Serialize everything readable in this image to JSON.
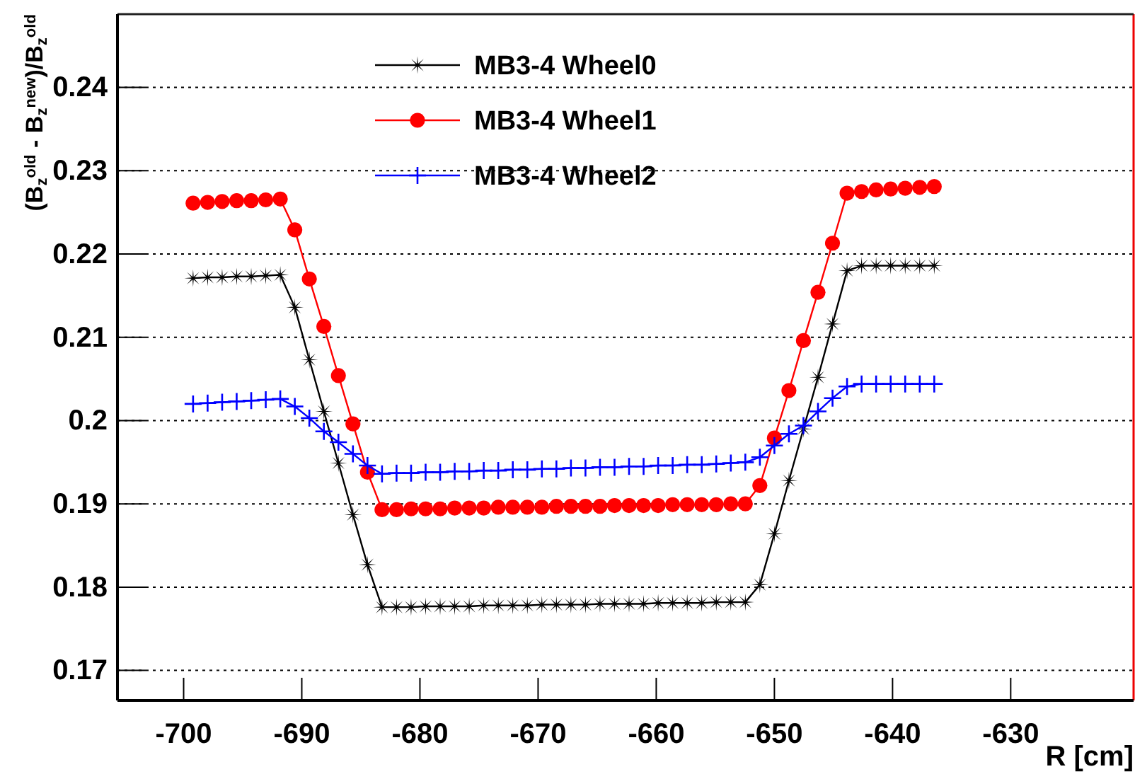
{
  "chart_data": {
    "type": "line",
    "ylabel": "(B$_{z}$$^{old}$ - B$_{z}$$^{new}$)/B$_{z}$$^{old}$",
    "xlabel": "R [cm]",
    "x": [
      -699.2,
      -697.97,
      -696.74,
      -695.51,
      -694.28,
      -693.05,
      -691.82,
      -690.59,
      -689.36,
      -688.13,
      -686.9,
      -685.67,
      -684.44,
      -683.21,
      -681.98,
      -680.75,
      -679.52,
      -678.29,
      -677.06,
      -675.83,
      -674.6,
      -673.37,
      -672.14,
      -670.91,
      -669.68,
      -668.45,
      -667.22,
      -665.99,
      -664.76,
      -663.53,
      -662.3,
      -661.07,
      -659.84,
      -658.61,
      -657.38,
      -656.15,
      -654.92,
      -653.69,
      -652.46,
      -651.23,
      -650.0,
      -648.77,
      -647.54,
      -646.31,
      -645.08,
      -643.85,
      -642.62,
      -641.39,
      -640.16,
      -638.93,
      -637.7,
      -636.47
    ],
    "series": [
      {
        "name": "MB3-4 Wheel0",
        "color": "#000000",
        "marker": "star",
        "values": [
          0.2171,
          0.2172,
          0.2172,
          0.2173,
          0.2173,
          0.2174,
          0.2175,
          0.2136,
          0.2073,
          0.2011,
          0.1949,
          0.1887,
          0.1827,
          0.1776,
          0.1776,
          0.1776,
          0.1777,
          0.1777,
          0.1777,
          0.1777,
          0.1778,
          0.1778,
          0.1778,
          0.1778,
          0.1779,
          0.1779,
          0.1779,
          0.1779,
          0.178,
          0.178,
          0.178,
          0.178,
          0.1781,
          0.1781,
          0.1781,
          0.1781,
          0.1782,
          0.1782,
          0.1782,
          0.1803,
          0.1864,
          0.1928,
          0.199,
          0.2052,
          0.2116,
          0.218,
          0.2186,
          0.2186,
          0.2186,
          0.2186,
          0.2186,
          0.2186
        ]
      },
      {
        "name": "MB3-4 Wheel1",
        "color": "#ff0000",
        "marker": "circle",
        "values": [
          0.2261,
          0.2262,
          0.2263,
          0.2264,
          0.2264,
          0.2265,
          0.2266,
          0.2229,
          0.217,
          0.2113,
          0.2054,
          0.1996,
          0.1938,
          0.1893,
          0.1893,
          0.1894,
          0.1894,
          0.1894,
          0.1895,
          0.1895,
          0.1895,
          0.1896,
          0.1896,
          0.1896,
          0.1896,
          0.1897,
          0.1897,
          0.1897,
          0.1897,
          0.1898,
          0.1898,
          0.1898,
          0.1898,
          0.1899,
          0.1899,
          0.1899,
          0.1899,
          0.19,
          0.19,
          0.1922,
          0.1979,
          0.2036,
          0.2096,
          0.2154,
          0.2213,
          0.2273,
          0.2275,
          0.2277,
          0.2278,
          0.2279,
          0.228,
          0.2281
        ]
      },
      {
        "name": "MB3-4 Wheel2",
        "color": "#0000ff",
        "marker": "cross",
        "values": [
          0.202,
          0.2021,
          0.2022,
          0.2023,
          0.2024,
          0.2025,
          0.2026,
          0.2017,
          0.2003,
          0.1987,
          0.1974,
          0.196,
          0.1946,
          0.1936,
          0.1937,
          0.1937,
          0.1938,
          0.1938,
          0.1939,
          0.1939,
          0.194,
          0.194,
          0.1941,
          0.1941,
          0.1942,
          0.1942,
          0.1943,
          0.1943,
          0.1944,
          0.1944,
          0.1945,
          0.1945,
          0.1946,
          0.1946,
          0.1947,
          0.1947,
          0.1948,
          0.1949,
          0.195,
          0.1956,
          0.197,
          0.1984,
          0.1994,
          0.2011,
          0.2027,
          0.2041,
          0.2044,
          0.2044,
          0.2044,
          0.2044,
          0.2044,
          0.2044
        ]
      }
    ],
    "xlim": [
      -705.6,
      -619.6
    ],
    "ylim": [
      0.1664,
      0.2488
    ],
    "xticks": [
      -700,
      -690,
      -680,
      -670,
      -660,
      -650,
      -640,
      -630
    ],
    "yticks": [
      0.17,
      0.18,
      0.19,
      0.2,
      0.21,
      0.22,
      0.23,
      0.24
    ],
    "grid": "y",
    "legend": "top",
    "line_style": "solid"
  }
}
